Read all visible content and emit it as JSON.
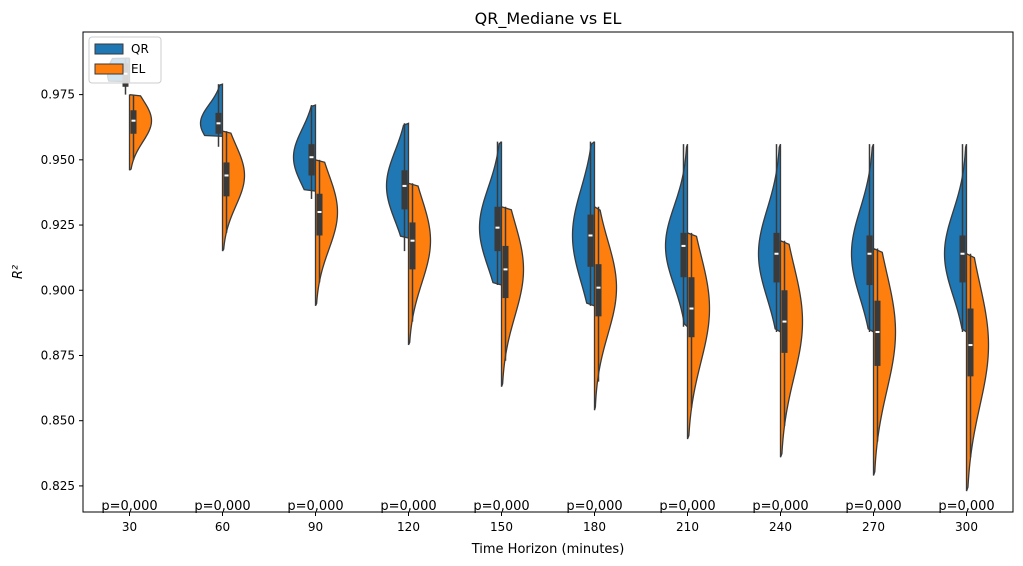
{
  "chart_data": {
    "type": "violin",
    "title": "QR_Mediane vs EL",
    "xlabel": "Time Horizon (minutes)",
    "ylabel": "R²",
    "categories": [
      "30",
      "60",
      "90",
      "120",
      "150",
      "180",
      "210",
      "240",
      "270",
      "300"
    ],
    "ylim": [
      0.815,
      0.999
    ],
    "yticks": [
      "0.825",
      "0.850",
      "0.875",
      "0.900",
      "0.925",
      "0.950",
      "0.975"
    ],
    "grid": false,
    "legend": "top-left",
    "annotations": [
      "p=0,000",
      "p=0,000",
      "p=0,000",
      "p=0,000",
      "p=0,000",
      "p=0,000",
      "p=0,000",
      "p=0,000",
      "p=0,000",
      "p=0,000"
    ],
    "series": [
      {
        "name": "QR",
        "color": "#1f77b4",
        "min": [
          0.98,
          0.959,
          0.938,
          0.92,
          0.902,
          0.894,
          0.886,
          0.884,
          0.884,
          0.884
        ],
        "q1": [
          0.978,
          0.96,
          0.944,
          0.931,
          0.915,
          0.909,
          0.905,
          0.903,
          0.902,
          0.903
        ],
        "median": [
          0.983,
          0.964,
          0.951,
          0.94,
          0.924,
          0.921,
          0.917,
          0.914,
          0.914,
          0.914
        ],
        "q3": [
          0.987,
          0.968,
          0.956,
          0.946,
          0.932,
          0.929,
          0.922,
          0.922,
          0.921,
          0.921
        ],
        "max": [
          0.989,
          0.979,
          0.971,
          0.964,
          0.957,
          0.957,
          0.956,
          0.956,
          0.956,
          0.956
        ],
        "whisker_low": [
          0.975,
          0.955,
          0.935,
          0.915,
          0.902,
          0.894,
          0.886,
          0.884,
          0.884,
          0.884
        ],
        "whisker_high": [
          0.989,
          0.979,
          0.971,
          0.964,
          0.957,
          0.957,
          0.956,
          0.956,
          0.956,
          0.956
        ]
      },
      {
        "name": "EL",
        "color": "#ff7f0e",
        "min": [
          0.946,
          0.915,
          0.894,
          0.879,
          0.863,
          0.854,
          0.843,
          0.836,
          0.829,
          0.823
        ],
        "q1": [
          0.96,
          0.936,
          0.921,
          0.908,
          0.897,
          0.89,
          0.882,
          0.876,
          0.871,
          0.867
        ],
        "median": [
          0.965,
          0.944,
          0.93,
          0.919,
          0.908,
          0.901,
          0.893,
          0.888,
          0.884,
          0.879
        ],
        "q3": [
          0.969,
          0.949,
          0.937,
          0.926,
          0.917,
          0.91,
          0.905,
          0.9,
          0.896,
          0.893
        ],
        "max": [
          0.975,
          0.961,
          0.95,
          0.941,
          0.932,
          0.932,
          0.922,
          0.919,
          0.916,
          0.914
        ],
        "whisker_low": [
          0.95,
          0.922,
          0.903,
          0.888,
          0.873,
          0.865,
          0.855,
          0.848,
          0.842,
          0.836
        ],
        "whisker_high": [
          0.975,
          0.961,
          0.95,
          0.941,
          0.932,
          0.932,
          0.922,
          0.919,
          0.916,
          0.914
        ]
      }
    ]
  }
}
